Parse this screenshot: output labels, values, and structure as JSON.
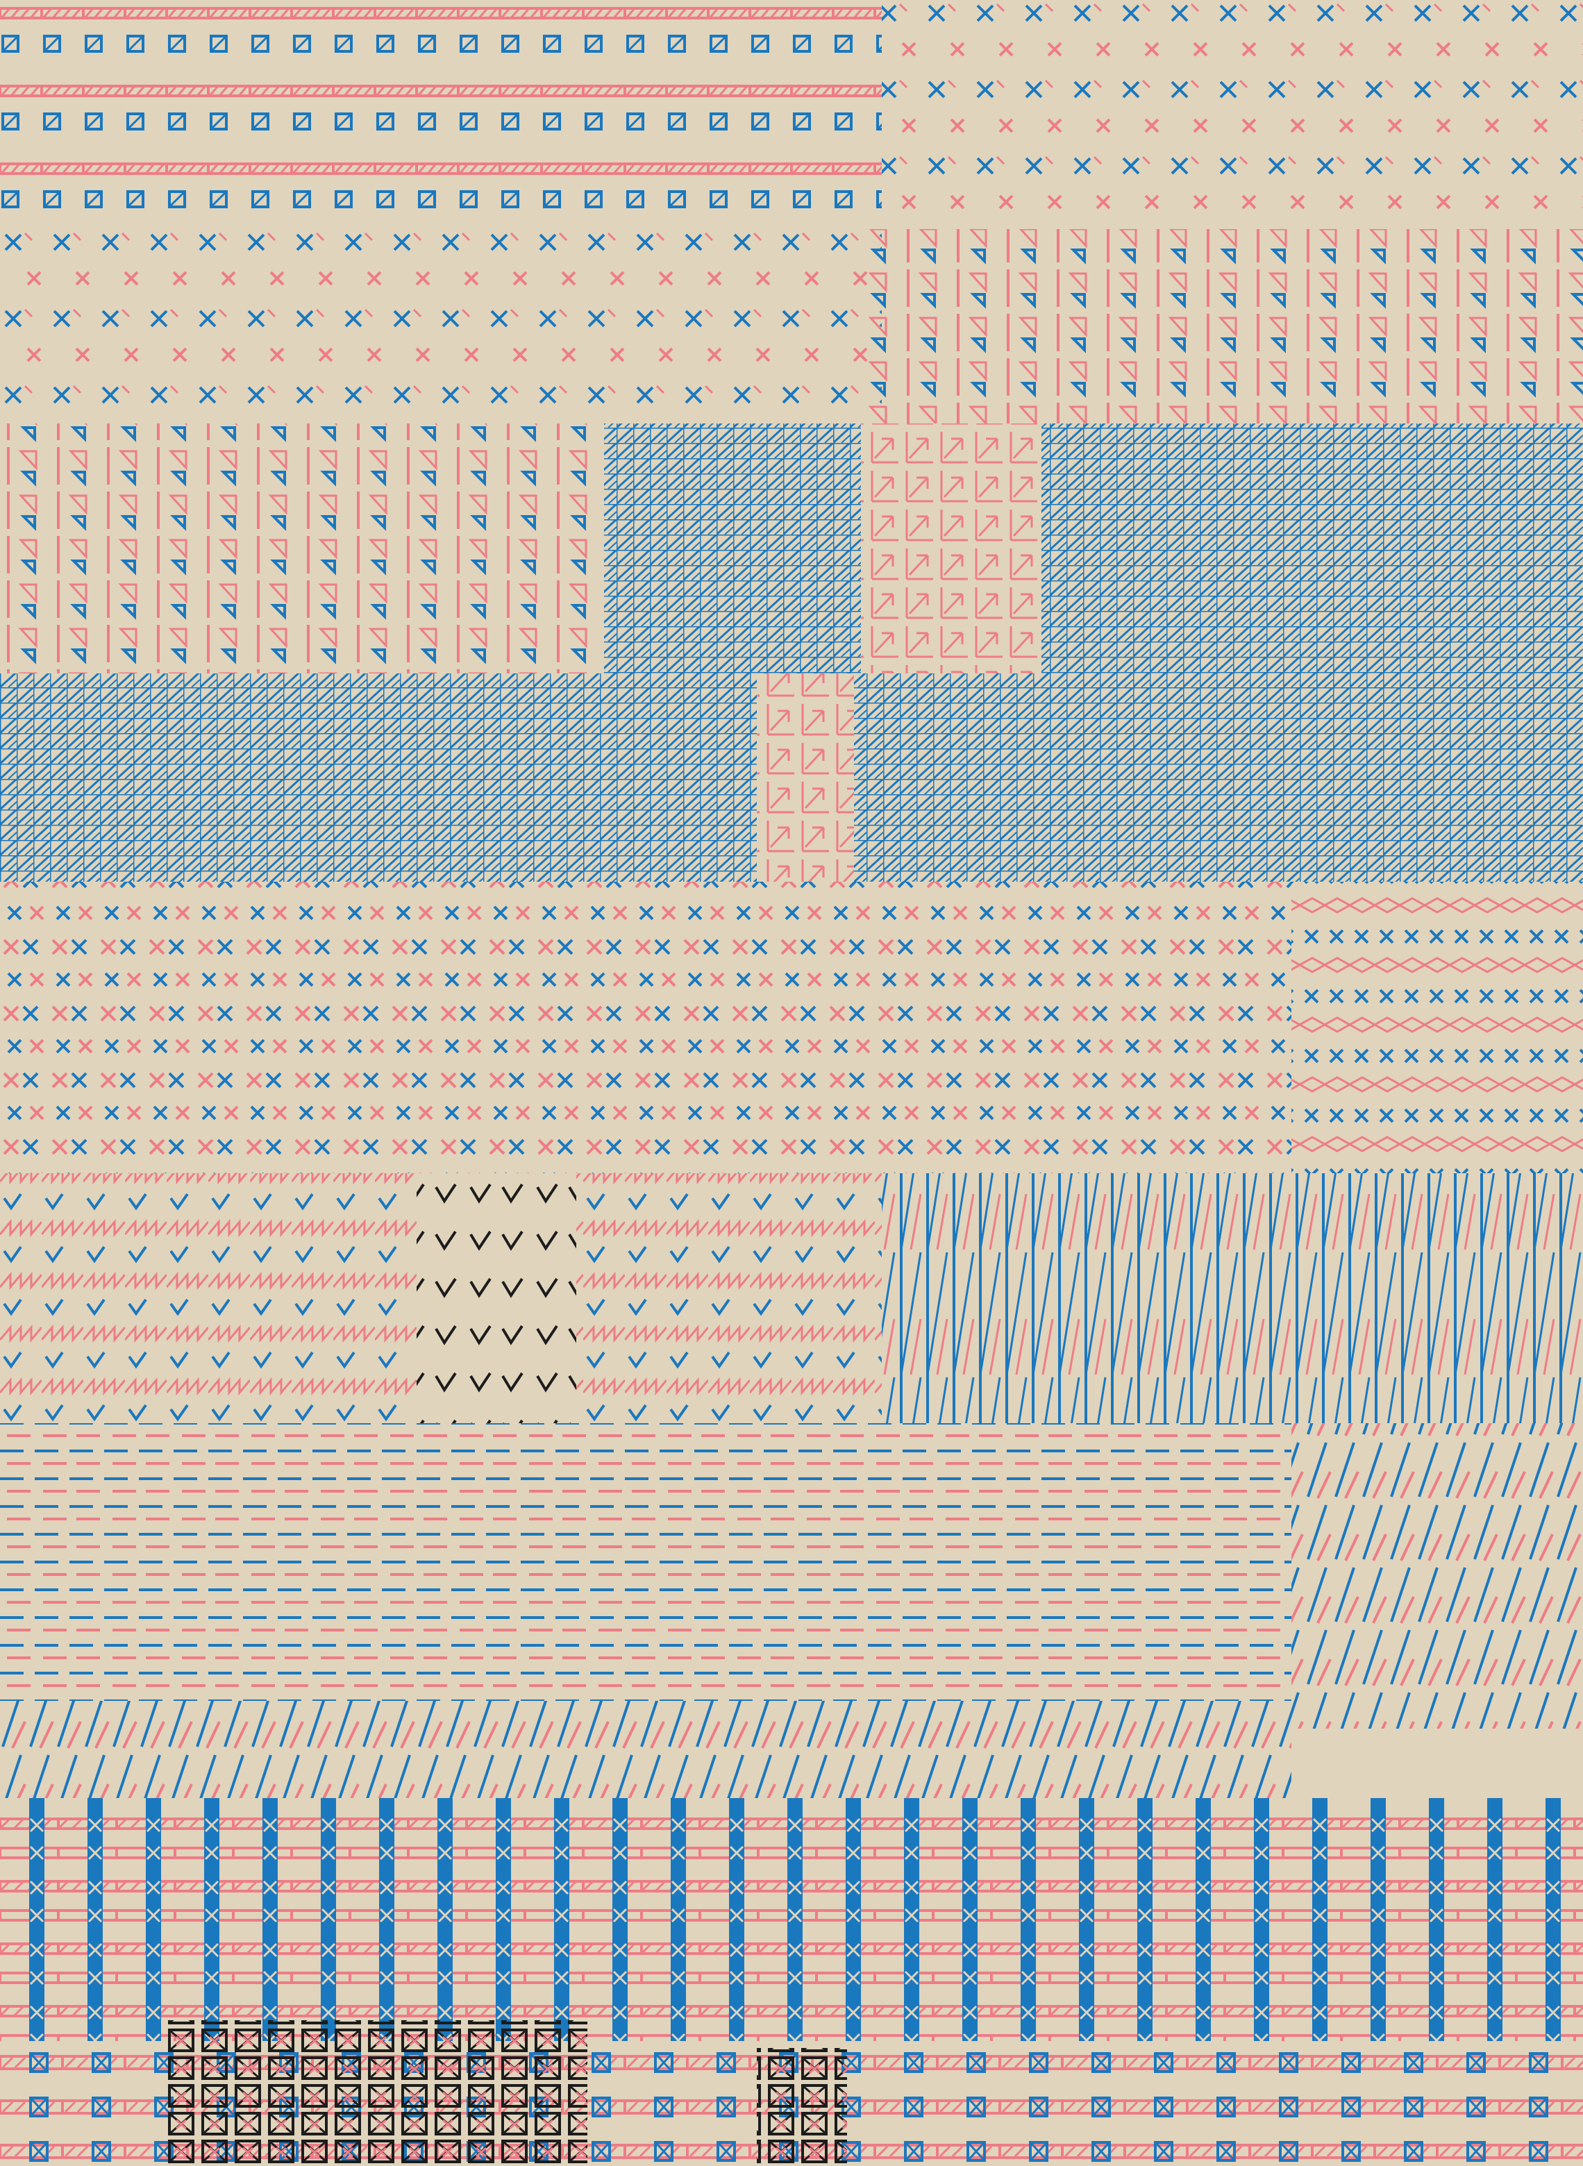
{
  "artwork": {
    "background": "#e0d4bc",
    "palette": {
      "blue": "#1a78bf",
      "pink": "#ee7c86",
      "black": "#1c1c1c"
    },
    "motifs": [
      "cross-stitch",
      "boxed-slash",
      "zigzag",
      "dashed-line",
      "diagonal-hatch",
      "checkmark",
      "boxed-x"
    ]
  }
}
